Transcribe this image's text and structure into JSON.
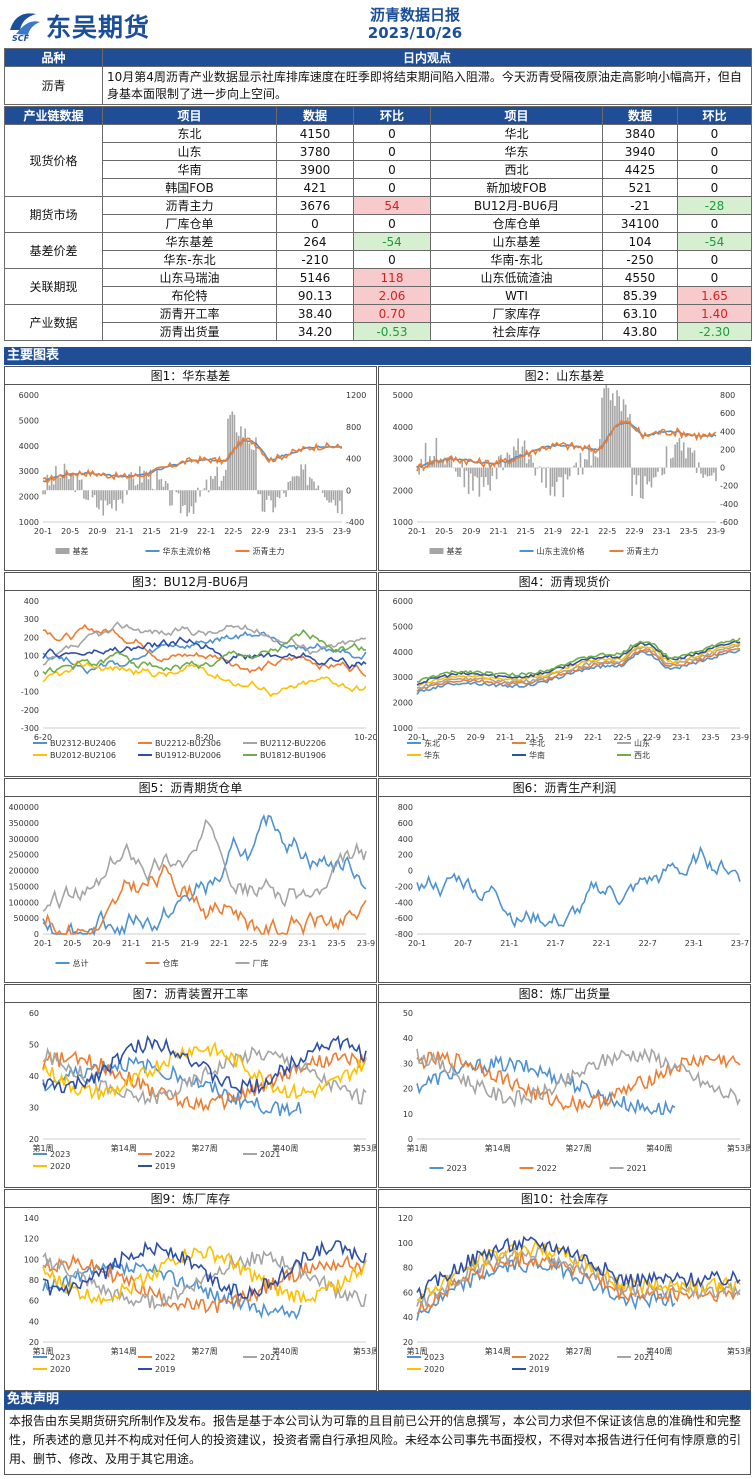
{
  "header": {
    "logo_text": "东吴期货",
    "logo_sub": "SCF",
    "title": "沥青数据日报",
    "date": "2023/10/26"
  },
  "view": {
    "col1_header": "品种",
    "col2_header": "日内观点",
    "product": "沥青",
    "text": "10月第4周沥青产业数据显示社库排库速度在旺季即将结束期间陷入阻滞。今天沥青受隔夜原油走高影响小幅高开，但自身基本面限制了进一步向上空间。"
  },
  "industry": {
    "headers": [
      "产业链数据",
      "项目",
      "数据",
      "环比",
      "项目",
      "数据",
      "环比"
    ],
    "groups": [
      {
        "category": "现货价格",
        "rows": [
          {
            "l_item": "东北",
            "l_val": "4150",
            "l_chg": "0",
            "l_cls": "",
            "r_item": "华北",
            "r_val": "3840",
            "r_chg": "0",
            "r_cls": ""
          },
          {
            "l_item": "山东",
            "l_val": "3780",
            "l_chg": "0",
            "l_cls": "",
            "r_item": "华东",
            "r_val": "3940",
            "r_chg": "0",
            "r_cls": ""
          },
          {
            "l_item": "华南",
            "l_val": "3900",
            "l_chg": "0",
            "l_cls": "",
            "r_item": "西北",
            "r_val": "4425",
            "r_chg": "0",
            "r_cls": ""
          },
          {
            "l_item": "韩国FOB",
            "l_val": "421",
            "l_chg": "0",
            "l_cls": "",
            "r_item": "新加坡FOB",
            "r_val": "521",
            "r_chg": "0",
            "r_cls": ""
          }
        ]
      },
      {
        "category": "期货市场",
        "rows": [
          {
            "l_item": "沥青主力",
            "l_val": "3676",
            "l_chg": "54",
            "l_cls": "red",
            "r_item": "BU12月-BU6月",
            "r_val": "-21",
            "r_chg": "-28",
            "r_cls": "grn"
          },
          {
            "l_item": "厂库仓单",
            "l_val": "0",
            "l_chg": "0",
            "l_cls": "",
            "r_item": "仓库仓单",
            "r_val": "34100",
            "r_chg": "0",
            "r_cls": ""
          }
        ]
      },
      {
        "category": "基差价差",
        "rows": [
          {
            "l_item": "华东基差",
            "l_val": "264",
            "l_chg": "-54",
            "l_cls": "grn",
            "r_item": "山东基差",
            "r_val": "104",
            "r_chg": "-54",
            "r_cls": "grn"
          },
          {
            "l_item": "华东-东北",
            "l_val": "-210",
            "l_chg": "0",
            "l_cls": "",
            "r_item": "华南-东北",
            "r_val": "-250",
            "r_chg": "0",
            "r_cls": ""
          }
        ]
      },
      {
        "category": "关联期现",
        "rows": [
          {
            "l_item": "山东马瑞油",
            "l_val": "5146",
            "l_chg": "118",
            "l_cls": "red",
            "r_item": "山东低硫渣油",
            "r_val": "4550",
            "r_chg": "0",
            "r_cls": ""
          },
          {
            "l_item": "布伦特",
            "l_val": "90.13",
            "l_chg": "2.06",
            "l_cls": "red",
            "r_item": "WTI",
            "r_val": "85.39",
            "r_chg": "1.65",
            "r_cls": "red"
          }
        ]
      },
      {
        "category": "产业数据",
        "rows": [
          {
            "l_item": "沥青开工率",
            "l_val": "38.40",
            "l_chg": "0.70",
            "l_cls": "red",
            "r_item": "厂家库存",
            "r_val": "63.10",
            "r_chg": "1.40",
            "r_cls": "red"
          },
          {
            "l_item": "沥青出货量",
            "l_val": "34.20",
            "l_chg": "-0.53",
            "l_cls": "grn",
            "r_item": "社会库存",
            "r_val": "43.80",
            "r_chg": "-2.30",
            "r_cls": "grn"
          }
        ]
      }
    ]
  },
  "charts_bar": "主要图表",
  "colors": {
    "blue": "#4f92d2",
    "orange": "#ed7d31",
    "gray": "#a5a5a5",
    "yellow": "#ffc000",
    "navy": "#2e4fa8",
    "green": "#70ad47"
  },
  "chart_data": [
    {
      "id": "c1",
      "type": "line",
      "title": "图1：华东基差",
      "y_ticks": [
        "6000",
        "5000",
        "4000",
        "3000",
        "2000",
        "1000"
      ],
      "y2_ticks": [
        "1200",
        "800",
        "400",
        "0",
        "-400"
      ],
      "x_ticks": [
        "20-1",
        "20-5",
        "20-9",
        "21-1",
        "21-5",
        "21-9",
        "22-1",
        "22-5",
        "22-9",
        "23-1",
        "23-5",
        "23-9"
      ],
      "ylim": [
        1000,
        6000
      ],
      "y2lim": [
        -400,
        1200
      ],
      "series": [
        {
          "name": "基差",
          "color": "gray",
          "kind": "area"
        },
        {
          "name": "华东主流价格",
          "color": "blue"
        },
        {
          "name": "沥青主力",
          "color": "orange"
        }
      ]
    },
    {
      "id": "c2",
      "type": "line",
      "title": "图2：山东基差",
      "y_ticks": [
        "5000",
        "4000",
        "3000",
        "2000",
        "1000"
      ],
      "y2_ticks": [
        "800",
        "600",
        "400",
        "200",
        "0",
        "-200",
        "-400",
        "-600"
      ],
      "x_ticks": [
        "20-1",
        "20-5",
        "20-9",
        "21-1",
        "21-5",
        "21-9",
        "22-1",
        "22-5",
        "22-9",
        "23-1",
        "23-5",
        "23-9"
      ],
      "ylim": [
        1000,
        5000
      ],
      "y2lim": [
        -600,
        800
      ],
      "series": [
        {
          "name": "基差",
          "color": "gray",
          "kind": "area"
        },
        {
          "name": "山东主流价格",
          "color": "blue"
        },
        {
          "name": "沥青主力",
          "color": "orange"
        }
      ]
    },
    {
      "id": "c3",
      "type": "line",
      "title": "图3：BU12月-BU6月",
      "y_ticks": [
        "400",
        "300",
        "200",
        "100",
        "0",
        "-100",
        "-200",
        "-300"
      ],
      "x_ticks": [
        "6-20",
        "8-20",
        "10-20"
      ],
      "ylim": [
        -300,
        400
      ],
      "series": [
        {
          "name": "BU2312-BU2406",
          "color": "blue"
        },
        {
          "name": "BU2212-BU2306",
          "color": "orange"
        },
        {
          "name": "BU2112-BU2206",
          "color": "gray"
        },
        {
          "name": "BU2012-BU2106",
          "color": "yellow"
        },
        {
          "name": "BU1912-BU2006",
          "color": "navy"
        },
        {
          "name": "BU1812-BU1906",
          "color": "green"
        }
      ]
    },
    {
      "id": "c4",
      "type": "line",
      "title": "图4：沥青现货价",
      "y_ticks": [
        "6000",
        "5000",
        "4000",
        "3000",
        "2000",
        "1000"
      ],
      "x_ticks": [
        "20-1",
        "20-5",
        "20-9",
        "21-1",
        "21-5",
        "21-9",
        "22-1",
        "22-5",
        "22-9",
        "23-1",
        "23-5",
        "23-9"
      ],
      "ylim": [
        1000,
        6000
      ],
      "series": [
        {
          "name": "东北",
          "color": "blue"
        },
        {
          "name": "华北",
          "color": "orange"
        },
        {
          "name": "山东",
          "color": "gray"
        },
        {
          "name": "华东",
          "color": "yellow"
        },
        {
          "name": "华南",
          "color": "navy"
        },
        {
          "name": "西北",
          "color": "green"
        }
      ]
    },
    {
      "id": "c5",
      "type": "line",
      "title": "图5：沥青期货仓单",
      "y_ticks": [
        "400000",
        "350000",
        "300000",
        "250000",
        "200000",
        "150000",
        "100000",
        "50000",
        "0"
      ],
      "x_ticks": [
        "20-1",
        "20-5",
        "20-9",
        "21-1",
        "21-5",
        "21-9",
        "22-1",
        "22-5",
        "22-9",
        "23-1",
        "23-5",
        "23-9"
      ],
      "ylim": [
        0,
        400000
      ],
      "series": [
        {
          "name": "总计",
          "color": "blue"
        },
        {
          "name": "仓库",
          "color": "orange"
        },
        {
          "name": "厂库",
          "color": "gray"
        }
      ]
    },
    {
      "id": "c6",
      "type": "line",
      "title": "图6：沥青生产利润",
      "y_ticks": [
        "800",
        "600",
        "400",
        "200",
        "0",
        "-200",
        "-400",
        "-600",
        "-800"
      ],
      "x_ticks": [
        "20-1",
        "20-7",
        "21-1",
        "21-7",
        "22-1",
        "22-7",
        "23-1",
        "23-7"
      ],
      "ylim": [
        -800,
        800
      ],
      "series": [
        {
          "name": "",
          "color": "blue"
        }
      ]
    },
    {
      "id": "c7",
      "type": "line",
      "title": "图7：沥青装置开工率",
      "y_ticks": [
        "60",
        "50",
        "40",
        "30",
        "20"
      ],
      "x_ticks": [
        "第1周",
        "第14周",
        "第27周",
        "第40周",
        "第53周"
      ],
      "ylim": [
        20,
        60
      ],
      "series": [
        {
          "name": "2023",
          "color": "blue"
        },
        {
          "name": "2022",
          "color": "orange"
        },
        {
          "name": "2021",
          "color": "gray"
        },
        {
          "name": "2020",
          "color": "yellow"
        },
        {
          "name": "2019",
          "color": "navy"
        }
      ]
    },
    {
      "id": "c8",
      "type": "line",
      "title": "图8：炼厂出货量",
      "y_ticks": [
        "50",
        "40",
        "30",
        "20",
        "10",
        "0"
      ],
      "x_ticks": [
        "第1周",
        "第14周",
        "第27周",
        "第40周",
        "第53周"
      ],
      "ylim": [
        0,
        50
      ],
      "series": [
        {
          "name": "2023",
          "color": "blue"
        },
        {
          "name": "2022",
          "color": "orange"
        },
        {
          "name": "2021",
          "color": "gray"
        }
      ]
    },
    {
      "id": "c9",
      "type": "line",
      "title": "图9：炼厂库存",
      "y_ticks": [
        "140",
        "120",
        "100",
        "80",
        "60",
        "40",
        "20"
      ],
      "x_ticks": [
        "第1周",
        "第14周",
        "第27周",
        "第40周",
        "第53周"
      ],
      "ylim": [
        20,
        140
      ],
      "series": [
        {
          "name": "2023",
          "color": "blue"
        },
        {
          "name": "2022",
          "color": "orange"
        },
        {
          "name": "2021",
          "color": "gray"
        },
        {
          "name": "2020",
          "color": "yellow"
        },
        {
          "name": "2019",
          "color": "navy"
        }
      ]
    },
    {
      "id": "c10",
      "type": "line",
      "title": "图10：社会库存",
      "y_ticks": [
        "120",
        "100",
        "80",
        "60",
        "40",
        "20"
      ],
      "x_ticks": [
        "第1周",
        "第14周",
        "第27周",
        "第40周",
        "第53周"
      ],
      "ylim": [
        20,
        120
      ],
      "series": [
        {
          "name": "2023",
          "color": "blue"
        },
        {
          "name": "2022",
          "color": "orange"
        },
        {
          "name": "2021",
          "color": "gray"
        },
        {
          "name": "2020",
          "color": "yellow"
        },
        {
          "name": "2019",
          "color": "navy"
        }
      ]
    }
  ],
  "disclaimer": {
    "title": "免责声明",
    "text": "本报告由东吴期货研究所制作及发布。报告是基于本公司认为可靠的且目前已公开的信息撰写，本公司力求但不保证该信息的准确性和完整性，所表述的意见并不构成对任何人的投资建议，投资者需自行承担风险。未经本公司事先书面授权，不得对本报告进行任何有悖原意的引用、删节、修改、及用于其它用途。"
  }
}
